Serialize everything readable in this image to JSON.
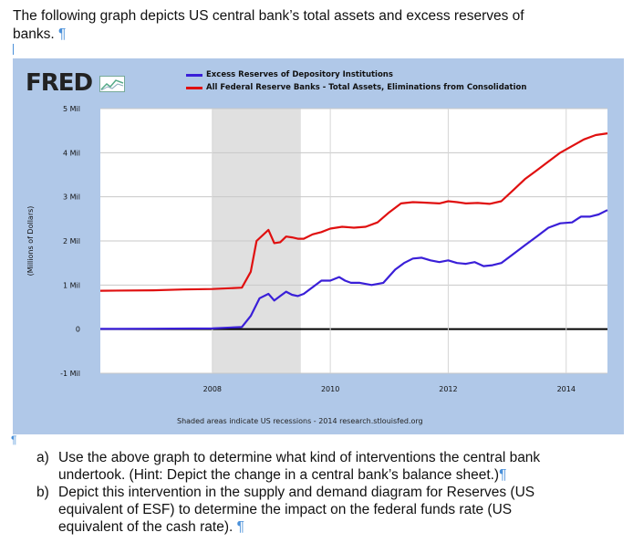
{
  "intro": {
    "line1": "The following graph depicts US central bank’s total assets and excess reserves of",
    "line2": "banks.",
    "pilcrow": "¶"
  },
  "chart": {
    "logo": "FRED",
    "legend": [
      {
        "name": "Excess Reserves of Depository Institutions",
        "color": "#3a1fd8"
      },
      {
        "name": "All Federal Reserve Banks - Total Assets, Eliminations from Consolidation",
        "color": "#e01010"
      }
    ],
    "note": "Shaded areas indicate US recessions - 2014 research.stlouisfed.org"
  },
  "chart_data": {
    "type": "line",
    "ylabel": "(Millions of Dollars)",
    "y_ticks": [
      "5 Mil",
      "4 Mil",
      "3 Mil",
      "2 Mil",
      "1 Mil",
      "0",
      "-1 Mil"
    ],
    "y_tick_values": [
      5000000,
      4000000,
      3000000,
      2000000,
      1000000,
      0,
      -1000000
    ],
    "x_ticks": [
      "2008",
      "2010",
      "2012",
      "2014"
    ],
    "x_tick_values": [
      2008,
      2010,
      2012,
      2014
    ],
    "xlim": [
      2006.1,
      2014.7
    ],
    "ylim": [
      -1000000,
      5000000
    ],
    "recession": [
      2008.0,
      2009.5
    ],
    "grid": true,
    "legend_position": "top",
    "series": [
      {
        "name": "Excess Reserves of Depository Institutions",
        "color": "#3a1fd8",
        "x": [
          2006.1,
          2007.0,
          2008.0,
          2008.5,
          2008.65,
          2008.8,
          2008.95,
          2009.05,
          2009.15,
          2009.25,
          2009.35,
          2009.45,
          2009.55,
          2009.7,
          2009.85,
          2010.0,
          2010.15,
          2010.25,
          2010.35,
          2010.5,
          2010.7,
          2010.9,
          2011.1,
          2011.25,
          2011.4,
          2011.55,
          2011.7,
          2011.85,
          2012.0,
          2012.15,
          2012.3,
          2012.45,
          2012.6,
          2012.75,
          2012.9,
          2013.1,
          2013.3,
          2013.5,
          2013.7,
          2013.9,
          2014.1,
          2014.25,
          2014.4,
          2014.55,
          2014.7
        ],
        "y": [
          5000,
          10000,
          15000,
          50000,
          300000,
          700000,
          800000,
          650000,
          750000,
          850000,
          780000,
          750000,
          800000,
          950000,
          1100000,
          1100000,
          1180000,
          1100000,
          1050000,
          1050000,
          1000000,
          1050000,
          1350000,
          1500000,
          1600000,
          1620000,
          1560000,
          1520000,
          1560000,
          1500000,
          1480000,
          1520000,
          1430000,
          1450000,
          1500000,
          1700000,
          1900000,
          2100000,
          2300000,
          2400000,
          2420000,
          2550000,
          2550000,
          2600000,
          2700000
        ]
      },
      {
        "name": "All Federal Reserve Banks - Total Assets, Eliminations from Consolidation",
        "color": "#e01010",
        "x": [
          2006.1,
          2007.0,
          2007.5,
          2008.0,
          2008.5,
          2008.65,
          2008.75,
          2008.95,
          2009.05,
          2009.15,
          2009.25,
          2009.35,
          2009.45,
          2009.55,
          2009.7,
          2009.85,
          2010.0,
          2010.2,
          2010.4,
          2010.6,
          2010.8,
          2011.0,
          2011.2,
          2011.4,
          2011.55,
          2011.7,
          2011.85,
          2012.0,
          2012.15,
          2012.3,
          2012.5,
          2012.7,
          2012.9,
          2013.1,
          2013.3,
          2013.5,
          2013.7,
          2013.9,
          2014.1,
          2014.3,
          2014.5,
          2014.7
        ],
        "y": [
          870000,
          880000,
          900000,
          910000,
          940000,
          1300000,
          2000000,
          2250000,
          1950000,
          1970000,
          2100000,
          2080000,
          2050000,
          2050000,
          2150000,
          2200000,
          2280000,
          2320000,
          2300000,
          2320000,
          2420000,
          2650000,
          2850000,
          2880000,
          2870000,
          2860000,
          2850000,
          2900000,
          2880000,
          2850000,
          2860000,
          2840000,
          2900000,
          3150000,
          3400000,
          3600000,
          3800000,
          4000000,
          4150000,
          4300000,
          4400000,
          4440000
        ]
      }
    ]
  },
  "questions": [
    {
      "label": "a)",
      "lines": [
        "Use the above graph to determine what kind of interventions the central bank",
        "undertook. (Hint: Depict the change in a central bank’s balance sheet.)"
      ]
    },
    {
      "label": "b)",
      "lines": [
        "Depict this intervention in the supply and demand diagram for Reserves (US",
        "equivalent of ESF) to determine the impact on the federal funds rate (US",
        "equivalent of the cash rate)."
      ]
    }
  ]
}
